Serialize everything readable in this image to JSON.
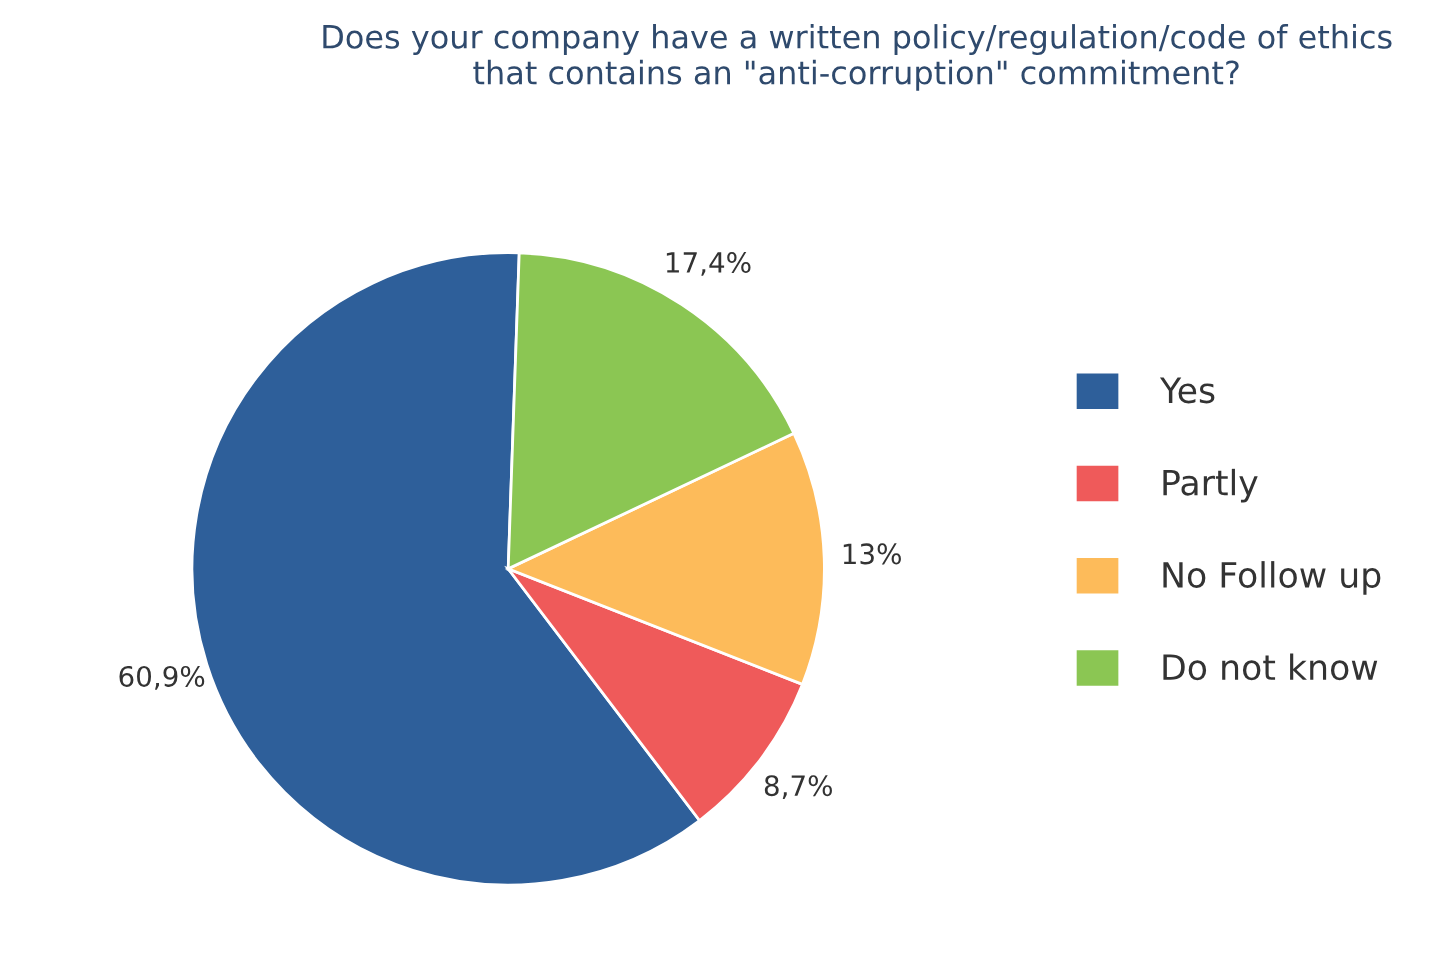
{
  "chart_data": {
    "type": "pie",
    "title": "Does your company have a written policy/regulation/code of ethics\nthat contains an \"anti-corruption\" commitment?",
    "categories": [
      "Yes",
      "Partly",
      "No Follow up",
      "Do not know"
    ],
    "values": [
      60.9,
      8.7,
      13,
      17.4
    ],
    "colors": [
      "#2e5f9a",
      "#ef5a5a",
      "#fdbb5a",
      "#8bc653"
    ],
    "value_labels": [
      "60,9%",
      "8,7%",
      "13%",
      "17,4%"
    ],
    "legend": "right"
  }
}
